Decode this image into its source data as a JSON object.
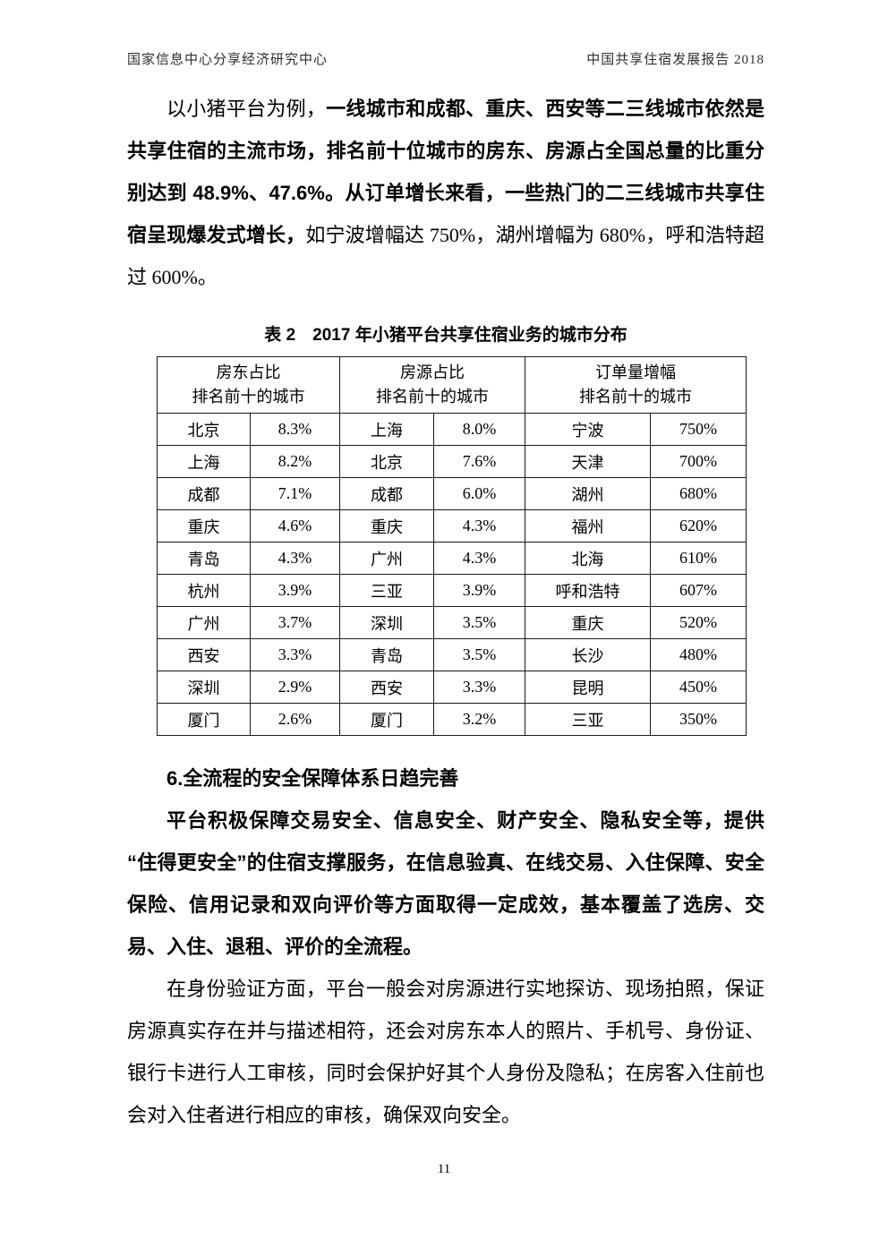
{
  "page_header": {
    "left": "国家信息中心分享经济研究中心",
    "right": "中国共享住宿发展报告 2018"
  },
  "intro_paragraph": {
    "lead": "以小猪平台为例，",
    "emphasis": "一线城市和成都、重庆、西安等二三线城市依然是共享住宿的主流市场，排名前十位城市的房东、房源占全国总量的比重分别达到 48.9%、47.6%。从订单增长来看，一些热门的二三线城市共享住宿呈现爆发式增长，",
    "tail": "如宁波增幅达 750%，湖州增幅为 680%，呼和浩特超过 600%。"
  },
  "table": {
    "caption": "表 2　2017 年小猪平台共享住宿业务的城市分布",
    "column_groups": [
      {
        "title": "房东占比",
        "subtitle": "排名前十的城市"
      },
      {
        "title": "房源占比",
        "subtitle": "排名前十的城市"
      },
      {
        "title": "订单量增幅",
        "subtitle": "排名前十的城市"
      }
    ],
    "rows": [
      [
        "北京",
        "8.3%",
        "上海",
        "8.0%",
        "宁波",
        "750%"
      ],
      [
        "上海",
        "8.2%",
        "北京",
        "7.6%",
        "天津",
        "700%"
      ],
      [
        "成都",
        "7.1%",
        "成都",
        "6.0%",
        "湖州",
        "680%"
      ],
      [
        "重庆",
        "4.6%",
        "重庆",
        "4.3%",
        "福州",
        "620%"
      ],
      [
        "青岛",
        "4.3%",
        "广州",
        "4.3%",
        "北海",
        "610%"
      ],
      [
        "杭州",
        "3.9%",
        "三亚",
        "3.9%",
        "呼和浩特",
        "607%"
      ],
      [
        "广州",
        "3.7%",
        "深圳",
        "3.5%",
        "重庆",
        "520%"
      ],
      [
        "西安",
        "3.3%",
        "青岛",
        "3.5%",
        "长沙",
        "480%"
      ],
      [
        "深圳",
        "2.9%",
        "西安",
        "3.3%",
        "昆明",
        "450%"
      ],
      [
        "厦门",
        "2.6%",
        "厦门",
        "3.2%",
        "三亚",
        "350%"
      ]
    ]
  },
  "section": {
    "heading": "6.全流程的安全保障体系日趋完善",
    "security_paragraph": "平台积极保障交易安全、信息安全、财产安全、隐私安全等，提供“住得更安全”的住宿支撑服务，在信息验真、在线交易、入住保障、安全保险、信用记录和双向评价等方面取得一定成效，基本覆盖了选房、交易、入住、退租、评价的全流程。",
    "verification_paragraph": "在身份验证方面，平台一般会对房源进行实地探访、现场拍照，保证房源真实存在并与描述相符，还会对房东本人的照片、手机号、身份证、银行卡进行人工审核，同时会保护好其个人身份及隐私；在房客入住前也会对入住者进行相应的审核，确保双向安全。"
  },
  "footer": {
    "page_number": "11"
  }
}
